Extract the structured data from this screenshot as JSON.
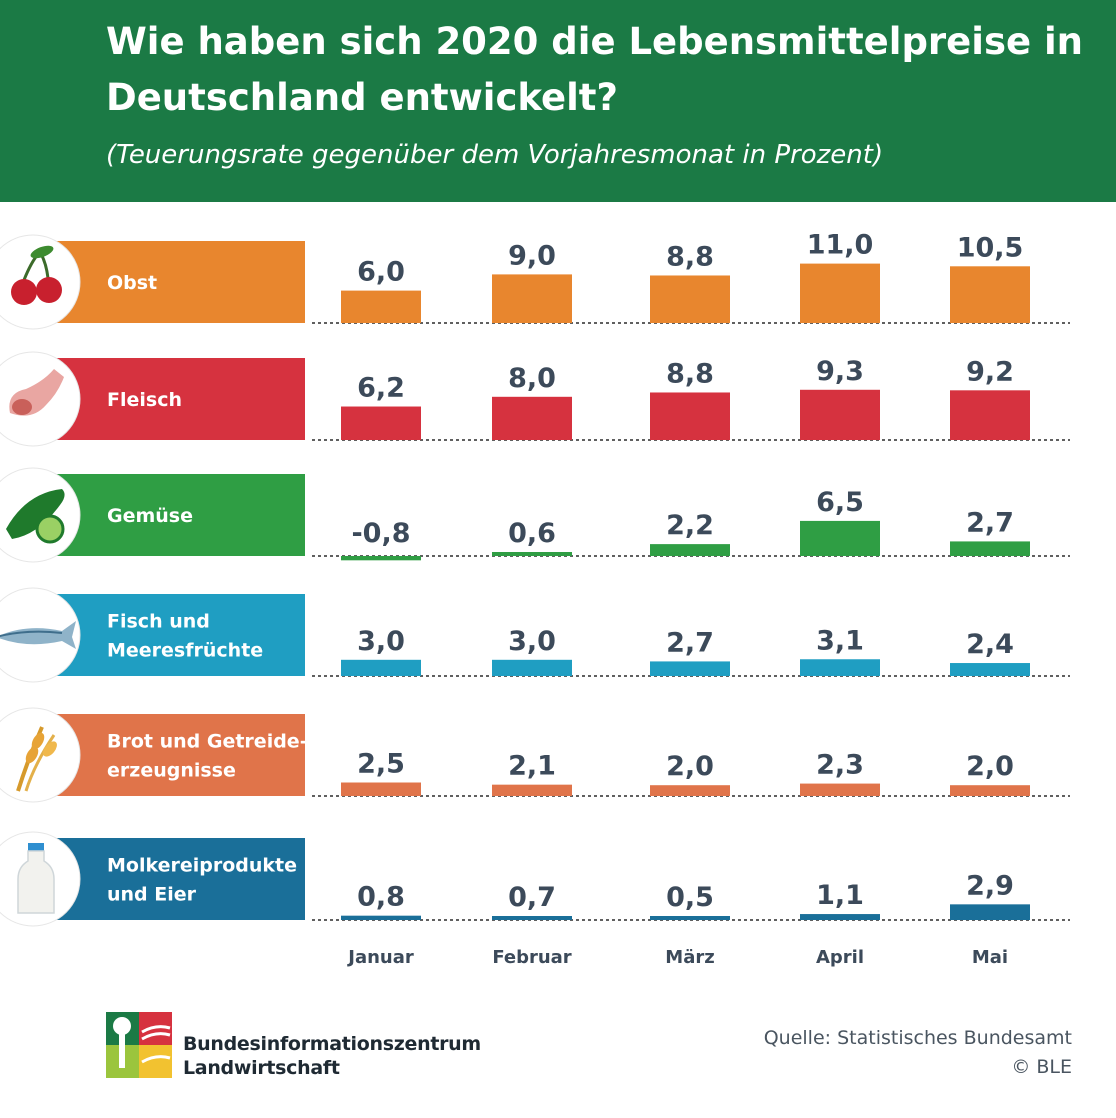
{
  "header": {
    "title": "Wie haben sich 2020 die Lebensmittelpreise in Deutschland entwickelt?",
    "subtitle": "(Teuerungsrate gegenüber dem Vorjahresmonat in Prozent)"
  },
  "chart_data": {
    "type": "bar",
    "categories": [
      "Januar",
      "Februar",
      "März",
      "April",
      "Mai"
    ],
    "series": [
      {
        "name": "Obst",
        "label_lines": [
          "Obst"
        ],
        "color": "#e8862e",
        "icon": "cherry-icon",
        "values": [
          6.0,
          9.0,
          8.8,
          11.0,
          10.5
        ],
        "labels": [
          "6,0",
          "9,0",
          "8,8",
          "11,0",
          "10,5"
        ]
      },
      {
        "name": "Fleisch",
        "label_lines": [
          "Fleisch"
        ],
        "color": "#d6323f",
        "icon": "meat-icon",
        "values": [
          6.2,
          8.0,
          8.8,
          9.3,
          9.2
        ],
        "labels": [
          "6,2",
          "8,0",
          "8,8",
          "9,3",
          "9,2"
        ]
      },
      {
        "name": "Gemüse",
        "label_lines": [
          "Gemüse"
        ],
        "color": "#2f9e44",
        "icon": "cucumber-icon",
        "values": [
          -0.8,
          0.6,
          2.2,
          6.5,
          2.7
        ],
        "labels": [
          "-0,8",
          "0,6",
          "2,2",
          "6,5",
          "2,7"
        ]
      },
      {
        "name": "Fisch und Meeresfrüchte",
        "label_lines": [
          "Fisch und",
          "Meeresfrüchte"
        ],
        "color": "#1f9ec2",
        "icon": "fish-icon",
        "values": [
          3.0,
          3.0,
          2.7,
          3.1,
          2.4
        ],
        "labels": [
          "3,0",
          "3,0",
          "2,7",
          "3,1",
          "2,4"
        ]
      },
      {
        "name": "Brot und Getreideerzeugnisse",
        "label_lines": [
          "Brot und Getreide-",
          "erzeugnisse"
        ],
        "color": "#e0744a",
        "icon": "grain-icon",
        "values": [
          2.5,
          2.1,
          2.0,
          2.3,
          2.0
        ],
        "labels": [
          "2,5",
          "2,1",
          "2,0",
          "2,3",
          "2,0"
        ]
      },
      {
        "name": "Molkereiprodukte und Eier",
        "label_lines": [
          "Molkereiprodukte",
          "und Eier"
        ],
        "color": "#1a6f99",
        "icon": "milk-bottle-icon",
        "values": [
          0.8,
          0.7,
          0.5,
          1.1,
          2.9
        ],
        "labels": [
          "0,8",
          "0,7",
          "0,5",
          "1,1",
          "2,9"
        ]
      }
    ],
    "xlabel": "",
    "ylabel": "",
    "grid": false,
    "legend": "left"
  },
  "footer": {
    "org_name_line1": "Bundesinformationszentrum",
    "org_name_line2": "Landwirtschaft",
    "source": "Quelle: Statistisches Bundesamt",
    "copyright": "© BLE",
    "logo_icon": "ble-logo-icon"
  }
}
